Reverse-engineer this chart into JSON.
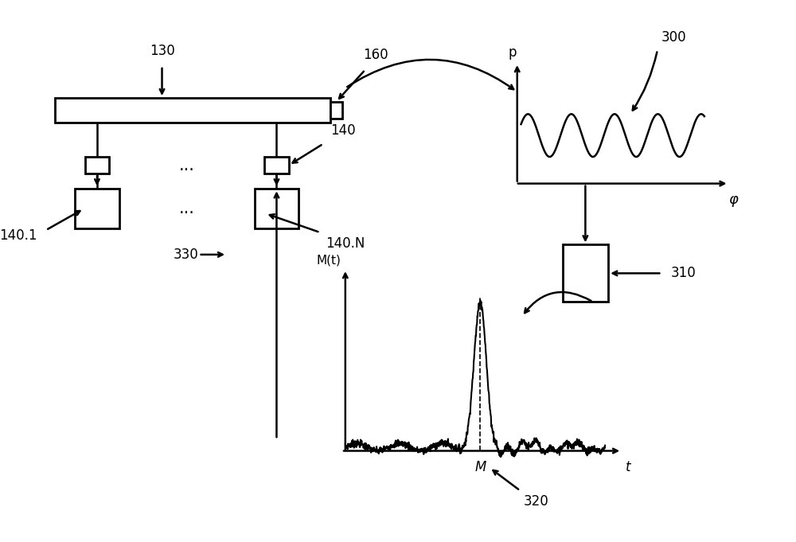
{
  "bg_color": "#ffffff",
  "line_color": "#000000",
  "label_130": "130",
  "label_160": "160",
  "label_140": "140",
  "label_140_1": "140.1",
  "label_140_N": "140.N",
  "label_300": "300",
  "label_310": "310",
  "label_320": "320",
  "label_330": "330",
  "axis_p": "p",
  "axis_phi": "φ",
  "axis_Mt": "M(t)",
  "axis_t": "t",
  "axis_M": "M",
  "figsize": [
    10.0,
    6.81
  ],
  "dpi": 100,
  "xlim": [
    0,
    10
  ],
  "ylim": [
    0,
    6.81
  ]
}
